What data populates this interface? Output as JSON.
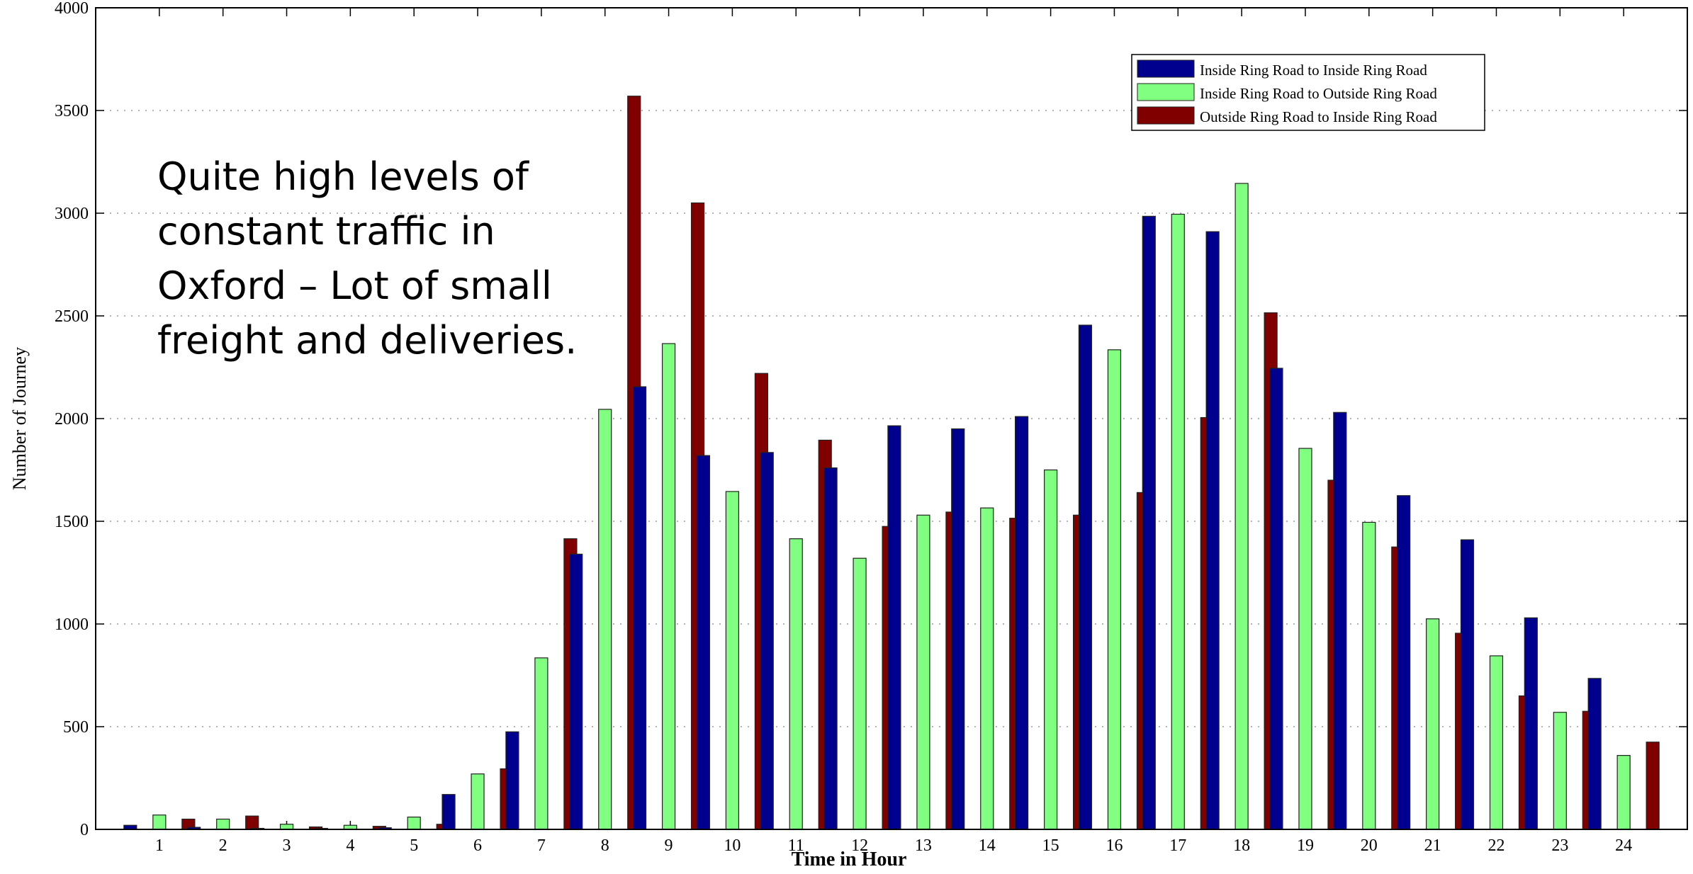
{
  "chart_data": {
    "type": "bar",
    "x_label": "Time in Hour",
    "y_label": "Number of Journey",
    "annotation": [
      "Quite high levels of",
      "constant traffic in",
      "Oxford – Lot of small",
      "freight and deliveries."
    ],
    "categories": [
      "1",
      "2",
      "3",
      "4",
      "5",
      "6",
      "7",
      "8",
      "9",
      "10",
      "11",
      "12",
      "13",
      "14",
      "15",
      "16",
      "17",
      "18",
      "19",
      "20",
      "21",
      "22",
      "23",
      "24"
    ],
    "series": [
      {
        "name": "Inside Ring Road to Inside Ring Road",
        "color": "#00008f",
        "values": [
          20,
          10,
          5,
          5,
          8,
          170,
          475,
          1340,
          2155,
          1820,
          1835,
          1760,
          1965,
          1950,
          2010,
          2455,
          2985,
          2910,
          2245,
          2030,
          1625,
          1410,
          1030,
          735
        ]
      },
      {
        "name": "Inside Ring Road to Outside Ring Road",
        "color": "#80ff80",
        "values": [
          70,
          50,
          25,
          20,
          60,
          270,
          835,
          2045,
          2365,
          1645,
          1415,
          1320,
          1530,
          1565,
          1750,
          2335,
          2995,
          3145,
          1855,
          1495,
          1025,
          845,
          570,
          360
        ]
      },
      {
        "name": "Outside Ring Road to Inside Ring Road",
        "color": "#800000",
        "values": [
          50,
          65,
          12,
          15,
          25,
          295,
          1415,
          3570,
          3050,
          2220,
          1895,
          1475,
          1545,
          1515,
          1530,
          1640,
          2005,
          2515,
          1700,
          1375,
          955,
          650,
          575,
          425
        ]
      }
    ],
    "ylim": [
      0,
      4000
    ],
    "yticks": [
      0,
      500,
      1000,
      1500,
      2000,
      2500,
      3000,
      3500,
      4000
    ],
    "grid": true,
    "legend": "top-right"
  }
}
